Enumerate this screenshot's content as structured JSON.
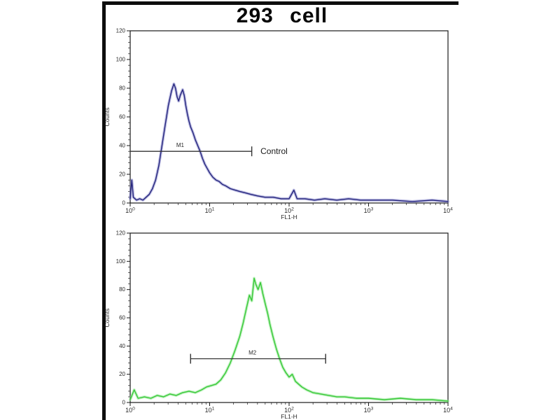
{
  "title": "293 cell",
  "colors": {
    "axis": "#1a1a1a",
    "tick_text": "#2a2a2a",
    "marker": "#333333",
    "annotation_text": "#1a1a1a",
    "blue_curve": "#24247c",
    "blue_glow": "#8888cc",
    "green_curve": "#37c837",
    "green_glow": "#90e890"
  },
  "chart_data": [
    {
      "id": "top-histogram",
      "type": "line",
      "color": "#24247c",
      "glow_color": "#8888cc",
      "xlabel": "FL1-H",
      "ylabel": "Counts",
      "x_scale": "log",
      "x_tick_exponents": [
        0,
        1,
        2,
        3,
        4
      ],
      "xlim_log": [
        0,
        4
      ],
      "ylim": [
        0,
        120
      ],
      "yticks": [
        0,
        20,
        40,
        60,
        80,
        100,
        120
      ],
      "grid": false,
      "marker": {
        "label": "M1",
        "label_log": 0.58,
        "line_counts": 36,
        "from_log": 0.0,
        "to_log": 1.53,
        "caps": [
          "right"
        ],
        "annotation": "Control",
        "annotation_log": 1.64
      },
      "x": [
        0.0,
        0.02,
        0.04,
        0.08,
        0.12,
        0.16,
        0.2,
        0.24,
        0.28,
        0.32,
        0.36,
        0.4,
        0.44,
        0.48,
        0.52,
        0.55,
        0.57,
        0.59,
        0.61,
        0.63,
        0.66,
        0.68,
        0.7,
        0.72,
        0.74,
        0.76,
        0.79,
        0.82,
        0.85,
        0.88,
        0.91,
        0.94,
        0.97,
        1.0,
        1.04,
        1.08,
        1.12,
        1.16,
        1.2,
        1.26,
        1.32,
        1.38,
        1.45,
        1.52,
        1.6,
        1.7,
        1.8,
        1.9,
        2.0,
        2.06,
        2.1,
        2.2,
        2.32,
        2.45,
        2.6,
        2.75,
        2.9,
        3.1,
        3.3,
        3.55,
        3.8,
        4.0
      ],
      "y": [
        3,
        16,
        4,
        2,
        3,
        2,
        4,
        6,
        10,
        16,
        26,
        40,
        54,
        68,
        78,
        83,
        80,
        74,
        71,
        75,
        79,
        75,
        68,
        62,
        57,
        53,
        49,
        44,
        40,
        36,
        31,
        27,
        24,
        21,
        18,
        16,
        15,
        13,
        12,
        10,
        9,
        8,
        7,
        6,
        5,
        4,
        4,
        3,
        3,
        9,
        3,
        3,
        2,
        3,
        2,
        3,
        2,
        2,
        2,
        1,
        2,
        1
      ]
    },
    {
      "id": "bottom-histogram",
      "type": "line",
      "color": "#37c837",
      "glow_color": "#90e890",
      "xlabel": "FL1-H",
      "ylabel": "Counts",
      "x_scale": "log",
      "x_tick_exponents": [
        0,
        1,
        2,
        3,
        4
      ],
      "xlim_log": [
        0,
        4
      ],
      "ylim": [
        0,
        120
      ],
      "yticks": [
        0,
        20,
        40,
        60,
        80,
        100,
        120
      ],
      "grid": false,
      "marker": {
        "label": "M2",
        "label_log": 1.49,
        "line_counts": 31,
        "from_log": 0.76,
        "to_log": 2.46,
        "caps": [
          "left",
          "right"
        ],
        "annotation": "",
        "annotation_log": 0
      },
      "x": [
        0.0,
        0.05,
        0.1,
        0.18,
        0.26,
        0.34,
        0.42,
        0.5,
        0.58,
        0.66,
        0.74,
        0.82,
        0.9,
        0.96,
        1.02,
        1.08,
        1.14,
        1.2,
        1.26,
        1.32,
        1.38,
        1.42,
        1.46,
        1.5,
        1.53,
        1.56,
        1.58,
        1.61,
        1.64,
        1.67,
        1.7,
        1.73,
        1.76,
        1.8,
        1.84,
        1.88,
        1.92,
        1.96,
        2.0,
        2.04,
        2.08,
        2.12,
        2.16,
        2.22,
        2.3,
        2.4,
        2.5,
        2.6,
        2.7,
        2.85,
        3.0,
        3.2,
        3.4,
        3.6,
        3.8,
        4.0
      ],
      "y": [
        2,
        9,
        3,
        4,
        3,
        5,
        4,
        6,
        5,
        7,
        8,
        7,
        9,
        11,
        12,
        13,
        16,
        21,
        28,
        37,
        47,
        56,
        66,
        76,
        72,
        88,
        84,
        80,
        85,
        77,
        70,
        63,
        55,
        46,
        38,
        31,
        25,
        21,
        18,
        20,
        15,
        13,
        11,
        9,
        7,
        6,
        5,
        4,
        4,
        3,
        3,
        2,
        3,
        2,
        2,
        1
      ]
    }
  ]
}
